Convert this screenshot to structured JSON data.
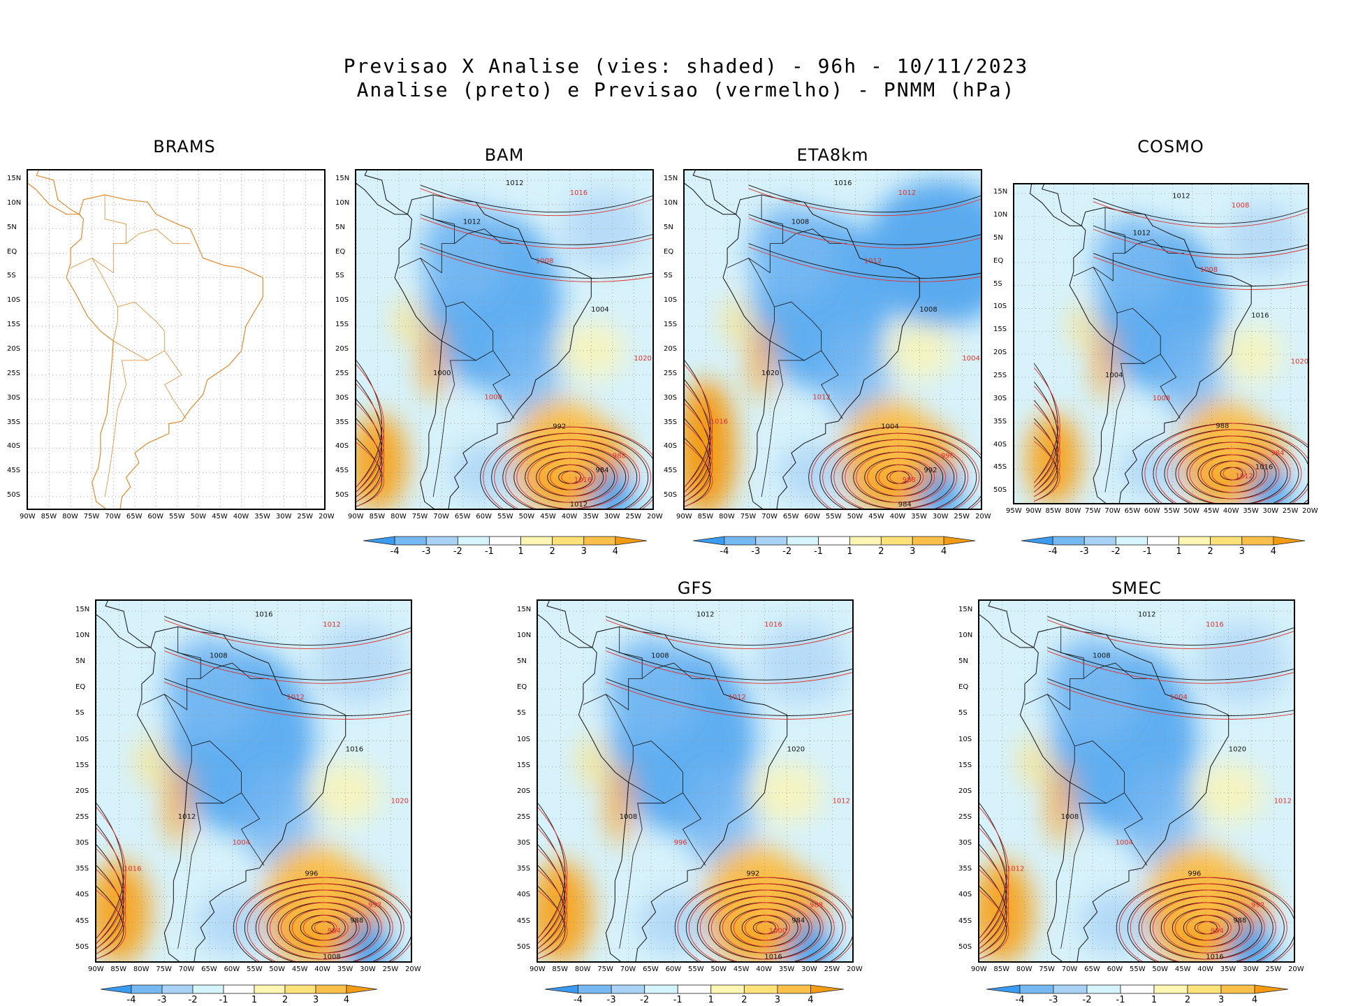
{
  "header": {
    "line1": "Previsao X Analise (vies: shaded) - 96h - 10/11/2023",
    "line2": "Analise (preto) e Previsao (vermelho) - PNMM (hPa)"
  },
  "lat_labels": [
    "15N",
    "10N",
    "5N",
    "EQ",
    "5S",
    "10S",
    "15S",
    "20S",
    "25S",
    "30S",
    "35S",
    "40S",
    "45S",
    "50S"
  ],
  "lon_labels": [
    "90W",
    "85W",
    "80W",
    "75W",
    "70W",
    "65W",
    "60W",
    "55W",
    "50W",
    "45W",
    "40W",
    "35W",
    "30W",
    "25W",
    "20W"
  ],
  "lon_labels_cosmo": [
    "95W",
    "90W",
    "85W",
    "80W",
    "75W",
    "70W",
    "65W",
    "60W",
    "55W",
    "50W",
    "45W",
    "40W",
    "35W",
    "30W",
    "25W",
    "20W"
  ],
  "colorbar": {
    "labels": [
      "-4",
      "-3",
      "-2",
      "-1",
      "1",
      "2",
      "3",
      "4"
    ],
    "colors": [
      "#3a9bf0",
      "#76b8f2",
      "#a9d3f6",
      "#d6f4fb",
      "#ffffff",
      "#fdf5b3",
      "#fde27a",
      "#fbbf4a",
      "#f39c12"
    ]
  },
  "panels": [
    {
      "id": "brams",
      "title": "BRAMS",
      "has_colorbar": false,
      "isobar_labels": []
    },
    {
      "id": "bam",
      "title": "BAM",
      "has_colorbar": true,
      "isobar_labels": [
        "1012",
        "1016",
        "1012",
        "1008",
        "1004",
        "1020",
        "1000",
        "1008",
        "992",
        "988",
        "984",
        "1016",
        "1012"
      ]
    },
    {
      "id": "eta8km",
      "title": "ETA8km",
      "has_colorbar": true,
      "isobar_labels": [
        "1016",
        "1012",
        "1008",
        "1012",
        "1008",
        "1004",
        "1020",
        "1012",
        "1004",
        "996",
        "992",
        "988",
        "984",
        "1016"
      ]
    },
    {
      "id": "cosmo",
      "title": "COSMO",
      "has_colorbar": true,
      "isobar_labels": [
        "1012",
        "1008",
        "1012",
        "1008",
        "1016",
        "1020",
        "1004",
        "1008",
        "988",
        "984",
        "1016",
        "1012"
      ]
    },
    {
      "id": "panel5",
      "title": "",
      "has_colorbar": true,
      "isobar_labels": [
        "1016",
        "1012",
        "1008",
        "1012",
        "1016",
        "1020",
        "1012",
        "1004",
        "996",
        "992",
        "988",
        "984",
        "1008",
        "1016"
      ]
    },
    {
      "id": "gfs",
      "title": "GFS",
      "has_colorbar": true,
      "isobar_labels": [
        "1012",
        "1016",
        "1008",
        "1012",
        "1020",
        "1012",
        "1008",
        "996",
        "992",
        "988",
        "984",
        "1000",
        "1016"
      ]
    },
    {
      "id": "smec",
      "title": "SMEC",
      "has_colorbar": true,
      "isobar_labels": [
        "1012",
        "1016",
        "1008",
        "1004",
        "1020",
        "1012",
        "1008",
        "1004",
        "996",
        "992",
        "988",
        "984",
        "1016",
        "1012"
      ]
    }
  ]
}
